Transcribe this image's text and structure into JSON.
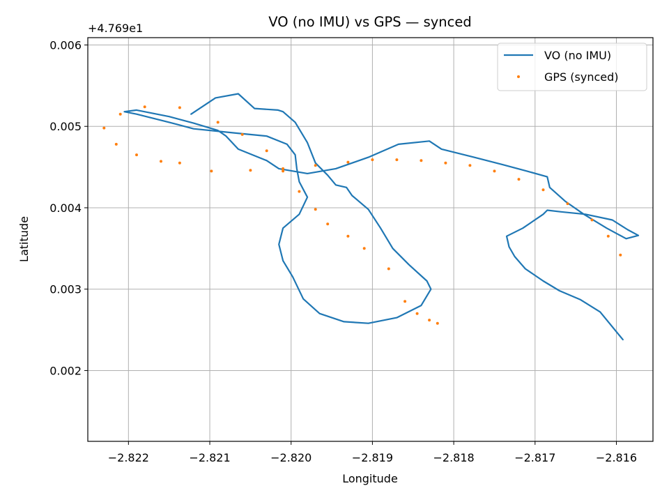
{
  "chart_data": {
    "type": "line",
    "title": "VO (no IMU) vs GPS — synced",
    "xlabel": "Longitude",
    "ylabel": "Latitude",
    "y_offset_label": "+4.769e1",
    "xlim": [
      -2.8225,
      -2.81555
    ],
    "ylim": [
      0.00113,
      0.00609
    ],
    "xticks": [
      -2.822,
      -2.821,
      -2.82,
      -2.819,
      -2.818,
      -2.817,
      -2.816
    ],
    "xtick_labels": [
      "−2.822",
      "−2.821",
      "−2.820",
      "−2.819",
      "−2.818",
      "−2.817",
      "−2.816"
    ],
    "yticks": [
      0.002,
      0.003,
      0.004,
      0.005,
      0.006
    ],
    "ytick_labels": [
      "0.002",
      "0.003",
      "0.004",
      "0.005",
      "0.006"
    ],
    "grid": true,
    "legend_position": "top-right",
    "series": [
      {
        "name": "VO (no IMU)",
        "kind": "line",
        "color": "#1f77b4",
        "x": [
          -2.82123,
          -2.82093,
          -2.82065,
          -2.82045,
          -2.82016,
          -2.8201,
          -2.81995,
          -2.8198,
          -2.8197,
          -2.81955,
          -2.81945,
          -2.81932,
          -2.81925,
          -2.81905,
          -2.8189,
          -2.81875,
          -2.81855,
          -2.81833,
          -2.81828,
          -2.8184,
          -2.8187,
          -2.81905,
          -2.81935,
          -2.81965,
          -2.81985,
          -2.81998,
          -2.8201,
          -2.82015,
          -2.8201,
          -2.8199,
          -2.8198,
          -2.8199,
          -2.81993,
          -2.81995,
          -2.82005,
          -2.8203,
          -2.8207,
          -2.8212,
          -2.8215,
          -2.8219,
          -2.82205,
          -2.8219,
          -2.8215,
          -2.8212,
          -2.8209,
          -2.8208,
          -2.82065,
          -2.8203,
          -2.82015,
          -2.8198,
          -2.81945,
          -2.81905,
          -2.81868,
          -2.8183,
          -2.81815,
          -2.81775,
          -2.8174,
          -2.8171,
          -2.81685,
          -2.81682,
          -2.81663,
          -2.8164,
          -2.81612,
          -2.81588,
          -2.81573,
          -2.81586,
          -2.81605,
          -2.81638,
          -2.81668,
          -2.81685,
          -2.8169,
          -2.81715,
          -2.81735,
          -2.81732,
          -2.81725,
          -2.81712,
          -2.8169,
          -2.8167,
          -2.81644,
          -2.8162,
          -2.81592
        ],
        "y": [
          0.00515,
          0.00535,
          0.0054,
          0.00522,
          0.0052,
          0.00518,
          0.00505,
          0.0048,
          0.00455,
          0.0044,
          0.00428,
          0.00425,
          0.00415,
          0.00398,
          0.00375,
          0.0035,
          0.0033,
          0.0031,
          0.003,
          0.0028,
          0.00265,
          0.00258,
          0.0026,
          0.0027,
          0.00288,
          0.00315,
          0.00335,
          0.00355,
          0.00375,
          0.00392,
          0.00413,
          0.00432,
          0.00448,
          0.00465,
          0.00478,
          0.00488,
          0.00492,
          0.00497,
          0.00505,
          0.00515,
          0.00518,
          0.0052,
          0.00512,
          0.00504,
          0.00495,
          0.00488,
          0.00472,
          0.00458,
          0.00448,
          0.00442,
          0.00448,
          0.00462,
          0.00478,
          0.00482,
          0.00472,
          0.00462,
          0.00453,
          0.00445,
          0.00438,
          0.00425,
          0.00408,
          0.00392,
          0.00375,
          0.00362,
          0.00366,
          0.00373,
          0.00385,
          0.00392,
          0.00395,
          0.00397,
          0.00392,
          0.00375,
          0.00365,
          0.00352,
          0.0034,
          0.00325,
          0.0031,
          0.00298,
          0.00287,
          0.00272,
          0.00238
        ]
      },
      {
        "name": "GPS (synced)",
        "kind": "scatter",
        "color": "#ff7f0e",
        "x": [
          -2.8209,
          -2.8206,
          -2.8203,
          -2.8201,
          -2.8199,
          -2.8197,
          -2.81955,
          -2.8193,
          -2.8191,
          -2.8188,
          -2.8186,
          -2.81845,
          -2.8183,
          -2.8182,
          -2.82137,
          -2.8218,
          -2.8221,
          -2.8223,
          -2.82215,
          -2.8219,
          -2.8216,
          -2.82137,
          -2.82098,
          -2.8205,
          -2.8201,
          -2.8197,
          -2.8193,
          -2.819,
          -2.8187,
          -2.8184,
          -2.8181,
          -2.8178,
          -2.8175,
          -2.8172,
          -2.8169,
          -2.8166,
          -2.8163,
          -2.8161,
          -2.81595
        ],
        "y": [
          0.00505,
          0.0049,
          0.0047,
          0.00445,
          0.0042,
          0.00398,
          0.0038,
          0.00365,
          0.0035,
          0.00325,
          0.00285,
          0.0027,
          0.00262,
          0.00258,
          0.00523,
          0.00524,
          0.00515,
          0.00498,
          0.00478,
          0.00465,
          0.00457,
          0.00455,
          0.00445,
          0.00446,
          0.00448,
          0.00452,
          0.00456,
          0.00459,
          0.00459,
          0.00458,
          0.00455,
          0.00452,
          0.00445,
          0.00435,
          0.00422,
          0.00405,
          0.00385,
          0.00365,
          0.00342
        ]
      }
    ]
  }
}
